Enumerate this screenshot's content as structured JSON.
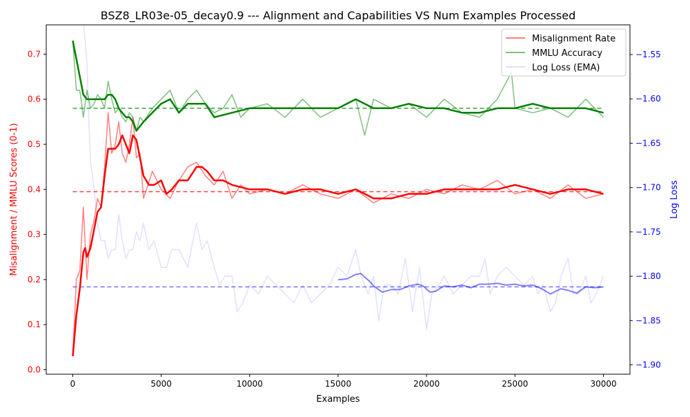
{
  "chart_data": {
    "type": "line",
    "title": "BSZ8_LR03e-05_decay0.9 --- Alignment and Capabilities VS Num Examples Processed",
    "xlabel": "Examples",
    "ylabel_left": "Misalignment / MMLU Scores (0-1)",
    "ylabel_right": "Log Loss",
    "xlim": [
      -1500,
      31500
    ],
    "ylim_left": [
      -0.01,
      0.765
    ],
    "ylim_right": [
      -1.9105,
      -1.5165
    ],
    "x_ticks": [
      0,
      5000,
      10000,
      15000,
      20000,
      25000,
      30000
    ],
    "x_tick_labels": [
      "0",
      "5000",
      "10000",
      "15000",
      "20000",
      "25000",
      "30000"
    ],
    "y_left_ticks": [
      0.0,
      0.1,
      0.2,
      0.3,
      0.4,
      0.5,
      0.6,
      0.7
    ],
    "y_left_tick_labels": [
      "0.0",
      "0.1",
      "0.2",
      "0.3",
      "0.4",
      "0.5",
      "0.6",
      "0.7"
    ],
    "y_right_ticks": [
      -1.9,
      -1.85,
      -1.8,
      -1.75,
      -1.7,
      -1.65,
      -1.6,
      -1.55
    ],
    "y_right_tick_labels": [
      "−1.90",
      "−1.85",
      "−1.80",
      "−1.75",
      "−1.70",
      "−1.65",
      "−1.60",
      "−1.55"
    ],
    "grid": false,
    "legend_position": "top-right",
    "colors": {
      "misalignment": "#ff0000",
      "mmlu": "#008000",
      "logloss": "#0000ff",
      "left_axis_label": "#ff0000",
      "right_axis_label": "#0000ff"
    },
    "legend": [
      {
        "label": "Misalignment Rate",
        "color": "#ff0000",
        "opacity": 0.5
      },
      {
        "label": "MMLU Accuracy",
        "color": "#008000",
        "opacity": 0.5
      },
      {
        "label": "Log Loss (EMA)",
        "color": "#0000ff",
        "opacity": 0.12
      }
    ],
    "series": [
      {
        "key": "misalignment_raw",
        "axis": "left",
        "x": [
          0,
          200,
          400,
          600,
          800,
          1000,
          1200,
          1400,
          1600,
          1800,
          2000,
          2200,
          2400,
          2600,
          2800,
          3000,
          3200,
          3400,
          3600,
          3800,
          4000,
          4500,
          5000,
          5500,
          6000,
          6500,
          7000,
          7500,
          8000,
          8500,
          9000,
          9500,
          10000,
          11000,
          12000,
          13000,
          14000,
          15000,
          16000,
          17000,
          18000,
          19000,
          20000,
          21000,
          22000,
          23000,
          24000,
          25000,
          26000,
          27000,
          28000,
          29000,
          30000
        ],
        "y": [
          0.03,
          0.2,
          0.22,
          0.36,
          0.2,
          0.3,
          0.33,
          0.38,
          0.36,
          0.45,
          0.57,
          0.48,
          0.5,
          0.55,
          0.48,
          0.46,
          0.5,
          0.56,
          0.47,
          0.48,
          0.38,
          0.44,
          0.4,
          0.38,
          0.42,
          0.45,
          0.46,
          0.43,
          0.41,
          0.44,
          0.38,
          0.41,
          0.39,
          0.4,
          0.39,
          0.41,
          0.39,
          0.38,
          0.4,
          0.37,
          0.39,
          0.38,
          0.4,
          0.39,
          0.41,
          0.4,
          0.42,
          0.39,
          0.4,
          0.38,
          0.41,
          0.38,
          0.39
        ]
      },
      {
        "key": "misalignment_smooth",
        "axis": "left",
        "x": [
          0,
          200,
          400,
          600,
          700,
          800,
          1000,
          1200,
          1400,
          1600,
          1800,
          2000,
          2200,
          2400,
          2600,
          2800,
          3000,
          3200,
          3400,
          3600,
          3800,
          4000,
          4300,
          4600,
          5000,
          5300,
          5600,
          6000,
          6500,
          7000,
          7300,
          7600,
          8000,
          8500,
          9000,
          10000,
          11000,
          12000,
          13000,
          14000,
          15000,
          16000,
          16500,
          17000,
          18000,
          19000,
          20000,
          21000,
          22000,
          23000,
          24000,
          25000,
          26000,
          27000,
          28000,
          29000,
          30000
        ],
        "y": [
          0.03,
          0.12,
          0.18,
          0.26,
          0.27,
          0.25,
          0.27,
          0.31,
          0.35,
          0.36,
          0.43,
          0.49,
          0.49,
          0.49,
          0.5,
          0.52,
          0.5,
          0.48,
          0.52,
          0.51,
          0.47,
          0.43,
          0.41,
          0.41,
          0.42,
          0.39,
          0.4,
          0.42,
          0.42,
          0.45,
          0.45,
          0.44,
          0.42,
          0.42,
          0.41,
          0.4,
          0.4,
          0.39,
          0.4,
          0.4,
          0.39,
          0.4,
          0.39,
          0.38,
          0.38,
          0.39,
          0.39,
          0.4,
          0.4,
          0.4,
          0.4,
          0.41,
          0.4,
          0.39,
          0.4,
          0.4,
          0.39
        ]
      },
      {
        "key": "mmlu_raw",
        "axis": "left",
        "x": [
          0,
          200,
          400,
          600,
          800,
          1000,
          1200,
          1400,
          1600,
          1800,
          2000,
          2200,
          2400,
          2600,
          2800,
          3000,
          3200,
          3400,
          3600,
          3800,
          4000,
          4500,
          5000,
          5500,
          6000,
          6500,
          7000,
          7500,
          8000,
          8500,
          9000,
          9500,
          10000,
          11000,
          12000,
          13000,
          14000,
          15000,
          16000,
          16500,
          17000,
          18000,
          19000,
          20000,
          21000,
          22000,
          23000,
          24000,
          24800,
          25000,
          26000,
          27000,
          28000,
          29000,
          30000
        ],
        "y": [
          0.73,
          0.62,
          0.62,
          0.56,
          0.62,
          0.58,
          0.59,
          0.61,
          0.6,
          0.58,
          0.64,
          0.6,
          0.57,
          0.58,
          0.56,
          0.55,
          0.57,
          0.56,
          0.53,
          0.56,
          0.55,
          0.58,
          0.6,
          0.62,
          0.57,
          0.6,
          0.62,
          0.59,
          0.57,
          0.58,
          0.61,
          0.56,
          0.58,
          0.59,
          0.56,
          0.6,
          0.56,
          0.58,
          0.6,
          0.52,
          0.6,
          0.58,
          0.59,
          0.56,
          0.6,
          0.57,
          0.56,
          0.6,
          0.66,
          0.58,
          0.57,
          0.58,
          0.56,
          0.6,
          0.56
        ]
      },
      {
        "key": "mmlu_smooth",
        "axis": "left",
        "x": [
          0,
          200,
          400,
          600,
          800,
          1000,
          1200,
          1400,
          1600,
          1800,
          2000,
          2200,
          2400,
          2600,
          2800,
          3000,
          3200,
          3400,
          3600,
          3800,
          4000,
          4500,
          5000,
          5500,
          6000,
          6500,
          7000,
          7500,
          8000,
          9000,
          10000,
          11000,
          12000,
          13000,
          14000,
          15000,
          16000,
          17000,
          18000,
          19000,
          20000,
          21000,
          22000,
          23000,
          24000,
          25000,
          26000,
          27000,
          28000,
          29000,
          30000
        ],
        "y": [
          0.73,
          0.69,
          0.65,
          0.61,
          0.6,
          0.6,
          0.6,
          0.6,
          0.6,
          0.6,
          0.61,
          0.61,
          0.6,
          0.58,
          0.57,
          0.56,
          0.56,
          0.55,
          0.53,
          0.54,
          0.55,
          0.57,
          0.59,
          0.6,
          0.57,
          0.59,
          0.59,
          0.59,
          0.56,
          0.57,
          0.58,
          0.58,
          0.58,
          0.58,
          0.58,
          0.58,
          0.6,
          0.58,
          0.58,
          0.59,
          0.58,
          0.58,
          0.57,
          0.57,
          0.58,
          0.58,
          0.59,
          0.58,
          0.58,
          0.58,
          0.57
        ]
      },
      {
        "key": "logloss_raw",
        "axis": "right",
        "x": [
          600,
          800,
          900,
          1000,
          1200,
          1400,
          1600,
          1800,
          2000,
          2200,
          2400,
          2600,
          2800,
          3000,
          3200,
          3400,
          3600,
          3800,
          4000,
          4300,
          4600,
          5000,
          5300,
          5600,
          6000,
          6500,
          7000,
          7300,
          7600,
          8000,
          8300,
          8600,
          9000,
          9300,
          9600,
          10000,
          10500,
          11000,
          11500,
          12000,
          12500,
          13000,
          13500,
          14000,
          14500,
          15000,
          15500,
          16000,
          16300,
          16700,
          17000,
          17300,
          17600,
          18000,
          18400,
          18800,
          19200,
          19600,
          20000,
          20300,
          20700,
          21000,
          21500,
          22000,
          22500,
          23000,
          23300,
          23600,
          24000,
          24500,
          25000,
          25500,
          26000,
          26300,
          26600,
          27000,
          27300,
          27600,
          28000,
          28300,
          28600,
          29000,
          29300,
          29600,
          30000
        ],
        "y": [
          -1.51,
          -1.56,
          -1.62,
          -1.67,
          -1.7,
          -1.74,
          -1.76,
          -1.76,
          -1.78,
          -1.77,
          -1.77,
          -1.73,
          -1.76,
          -1.78,
          -1.77,
          -1.77,
          -1.75,
          -1.76,
          -1.74,
          -1.77,
          -1.76,
          -1.79,
          -1.79,
          -1.77,
          -1.77,
          -1.79,
          -1.74,
          -1.77,
          -1.76,
          -1.79,
          -1.81,
          -1.8,
          -1.8,
          -1.84,
          -1.83,
          -1.81,
          -1.82,
          -1.8,
          -1.81,
          -1.82,
          -1.83,
          -1.81,
          -1.83,
          -1.82,
          -1.81,
          -1.79,
          -1.8,
          -1.77,
          -1.8,
          -1.82,
          -1.8,
          -1.85,
          -1.81,
          -1.81,
          -1.82,
          -1.78,
          -1.84,
          -1.79,
          -1.86,
          -1.82,
          -1.81,
          -1.8,
          -1.82,
          -1.81,
          -1.8,
          -1.8,
          -1.78,
          -1.82,
          -1.8,
          -1.79,
          -1.8,
          -1.81,
          -1.8,
          -1.82,
          -1.81,
          -1.84,
          -1.83,
          -1.8,
          -1.78,
          -1.82,
          -1.82,
          -1.8,
          -1.83,
          -1.82,
          -1.8
        ]
      },
      {
        "key": "logloss_smooth",
        "axis": "right",
        "x": [
          15000,
          15500,
          16000,
          16300,
          16500,
          16800,
          17000,
          17500,
          18000,
          18500,
          19000,
          19500,
          19800,
          20200,
          20500,
          21000,
          21500,
          22000,
          22500,
          23000,
          23500,
          24000,
          24500,
          25000,
          25500,
          26000,
          26500,
          27000,
          27300,
          27600,
          28000,
          28500,
          29000,
          29500,
          30000
        ],
        "y": [
          -1.804,
          -1.803,
          -1.798,
          -1.797,
          -1.801,
          -1.806,
          -1.811,
          -1.818,
          -1.815,
          -1.815,
          -1.811,
          -1.809,
          -1.811,
          -1.818,
          -1.817,
          -1.811,
          -1.812,
          -1.81,
          -1.813,
          -1.809,
          -1.809,
          -1.808,
          -1.81,
          -1.809,
          -1.811,
          -1.81,
          -1.814,
          -1.82,
          -1.817,
          -1.814,
          -1.816,
          -1.819,
          -1.812,
          -1.813,
          -1.812
        ]
      }
    ],
    "reference_lines": [
      {
        "key": "misalignment_mean",
        "axis": "left",
        "y": 0.395,
        "color": "#ff0000"
      },
      {
        "key": "mmlu_mean",
        "axis": "left",
        "y": 0.58,
        "color": "#008000"
      },
      {
        "key": "logloss_mean",
        "axis": "right",
        "y": -1.812,
        "color": "#0000ff"
      }
    ]
  }
}
